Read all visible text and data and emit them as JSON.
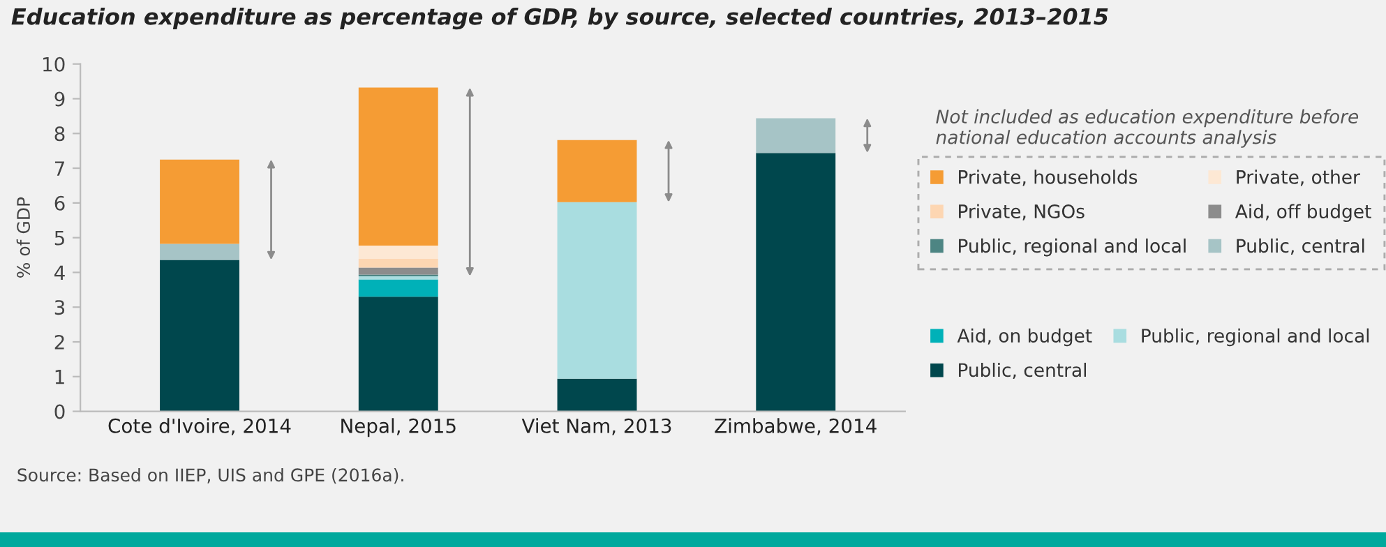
{
  "chart_data": {
    "type": "bar",
    "stacked": true,
    "title": "Education expenditure as percentage of GDP, by source, selected countries, 2013–2015",
    "ylabel": "% of GDP",
    "legend_title": "Not included as education expenditure before national education accounts analysis",
    "categories": [
      "Cote d'Ivoire, 2014",
      "Nepal, 2015",
      "Viet Nam, 2013",
      "Zimbabwe, 2014"
    ],
    "ylim": [
      0,
      10
    ],
    "yticks": [
      0,
      1,
      2,
      3,
      4,
      5,
      6,
      7,
      8,
      9,
      10
    ],
    "grid": false,
    "legend": "right",
    "series": [
      {
        "name": "Public, central",
        "color": "#00474d",
        "values": [
          4.36,
          3.3,
          0.94,
          7.44
        ]
      },
      {
        "name": "Aid, on budget",
        "color": "#00b1b8",
        "values": [
          null,
          0.5,
          null,
          null
        ]
      },
      {
        "name": "Public, regional and local",
        "color": "#a9dde0",
        "values": [
          null,
          0.09,
          5.08,
          null
        ]
      },
      {
        "name": "Public, central",
        "color": "#a6c4c6",
        "values": [
          0.46,
          null,
          null,
          1.0
        ]
      },
      {
        "name": "Public, regional and local",
        "color": "#4d8583",
        "values": [
          null,
          0.05,
          null,
          null
        ]
      },
      {
        "name": "Aid, off budget",
        "color": "#8c8c8c",
        "values": [
          null,
          0.2,
          null,
          null
        ]
      },
      {
        "name": "Private, NGOs",
        "color": "#fdd6b2",
        "values": [
          null,
          0.25,
          null,
          null
        ]
      },
      {
        "name": "Private, other",
        "color": "#fde8d4",
        "values": [
          null,
          0.38,
          null,
          null
        ]
      },
      {
        "name": "Private, households",
        "color": "#f59c34",
        "values": [
          2.43,
          4.55,
          1.79,
          null
        ]
      }
    ],
    "annotations": [
      "Source: Based on IIEP, UIS and GPE (2016a)."
    ]
  }
}
